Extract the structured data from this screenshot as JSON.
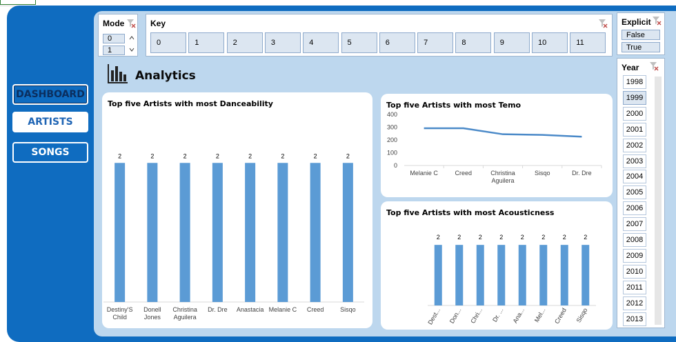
{
  "nav": {
    "dashboard": "DASHBOARD",
    "artists": "ARTISTS",
    "songs": "SONGS"
  },
  "header": {
    "title": "Analytics",
    "icon": "bar-chart-icon"
  },
  "slicers": {
    "mode": {
      "title": "Mode",
      "items": [
        "0",
        "1"
      ]
    },
    "key": {
      "title": "Key",
      "items": [
        "0",
        "1",
        "2",
        "3",
        "4",
        "5",
        "6",
        "7",
        "8",
        "9",
        "10",
        "11"
      ]
    },
    "explicit": {
      "title": "Explicit",
      "items": [
        "False",
        "True"
      ]
    },
    "year": {
      "title": "Year",
      "items": [
        "1998",
        "1999",
        "2000",
        "2001",
        "2002",
        "2003",
        "2004",
        "2005",
        "2006",
        "2007",
        "2008",
        "2009",
        "2010",
        "2011",
        "2012",
        "2013"
      ],
      "selected": "1999"
    }
  },
  "colors": {
    "frame": "#0f6cc0",
    "content": "#bdd7ee",
    "bar": "#5b9bd5"
  },
  "chart_data": [
    {
      "type": "bar",
      "title": "Top five Artists with most Danceability",
      "categories": [
        "Destiny'S Child",
        "Donell Jones",
        "Christina Aguilera",
        "Dr. Dre",
        "Anastacia",
        "Melanie C",
        "Creed",
        "Sisqo"
      ],
      "values": [
        2,
        2,
        2,
        2,
        2,
        2,
        2,
        2
      ],
      "ylim": [
        0,
        2.3
      ],
      "grid": false
    },
    {
      "type": "line",
      "title": "Top five Artists with most Temo",
      "categories": [
        "Melanie C",
        "Creed",
        "Christina Aguilera",
        "Sisqo",
        "Dr. Dre"
      ],
      "values": [
        292,
        292,
        245,
        240,
        226
      ],
      "yticks": [
        "0",
        "100",
        "200",
        "300",
        "400"
      ],
      "ylim": [
        0,
        400
      ],
      "grid": false
    },
    {
      "type": "bar",
      "title": "Top five Artists with most Acousticness",
      "categories": [
        "Dest...",
        "Don...",
        "Chri...",
        "Dr. ...",
        "Ana...",
        "Mel...",
        "Creed",
        "Sisqo"
      ],
      "values": [
        2,
        2,
        2,
        2,
        2,
        2,
        2,
        2
      ],
      "ylim": [
        0,
        2.3
      ],
      "grid": false
    }
  ]
}
